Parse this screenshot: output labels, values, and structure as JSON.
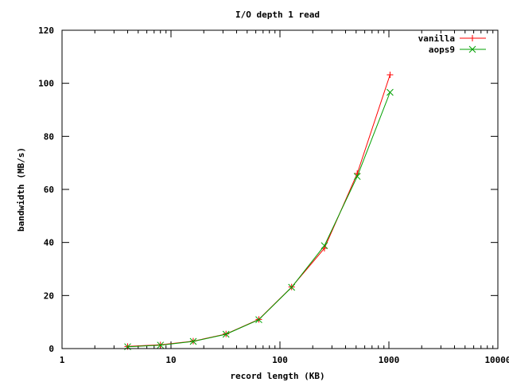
{
  "chart_data": {
    "type": "line",
    "title": "I/O depth 1 read",
    "xlabel": "record length (KB)",
    "ylabel": "bandwidth (MB/s)",
    "xscale": "log",
    "xlim": [
      1,
      10000
    ],
    "ylim": [
      0,
      120
    ],
    "xticks": [
      1,
      10,
      100,
      1000,
      10000
    ],
    "xtick_labels": [
      "1",
      "10",
      "100",
      "1000",
      "10000"
    ],
    "yticks": [
      0,
      20,
      40,
      60,
      80,
      100,
      120
    ],
    "ytick_labels": [
      "0",
      "20",
      "40",
      "60",
      "80",
      "100",
      "120"
    ],
    "grid": false,
    "legend_position": "top-right",
    "series": [
      {
        "name": "vanilla",
        "color": "#ff0000",
        "marker": "plus",
        "x": [
          4,
          8,
          16,
          32,
          64,
          128,
          256,
          512,
          1024
        ],
        "y": [
          0.8,
          1.4,
          2.8,
          5.5,
          11.0,
          23.2,
          37.8,
          66.0,
          103.2
        ]
      },
      {
        "name": "aops9",
        "color": "#00a000",
        "marker": "cross",
        "x": [
          4,
          8,
          16,
          32,
          64,
          128,
          256,
          512,
          1024
        ],
        "y": [
          0.7,
          1.3,
          2.7,
          5.4,
          10.9,
          23.1,
          38.8,
          64.9,
          96.6
        ]
      }
    ]
  }
}
